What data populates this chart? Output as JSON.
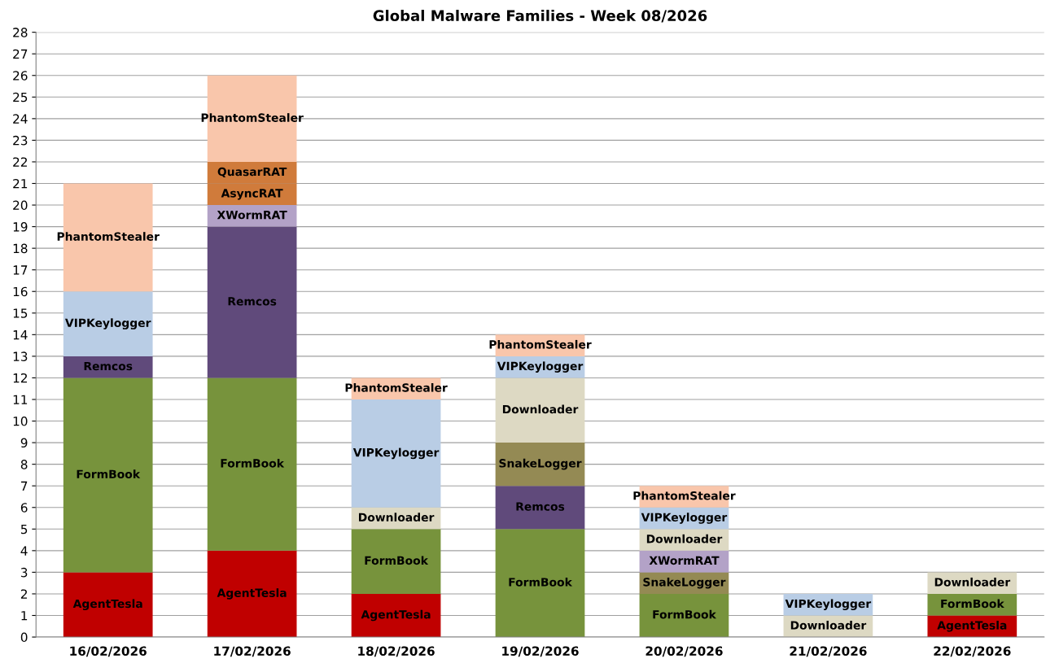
{
  "chart_data": {
    "type": "bar",
    "stacked": true,
    "title": "Global Malware Families - Week 08/2026",
    "categories": [
      "16/02/2026",
      "17/02/2026",
      "18/02/2026",
      "19/02/2026",
      "20/02/2026",
      "21/02/2026",
      "22/02/2026"
    ],
    "series": [
      {
        "name": "AgentTesla",
        "color": "#c00000",
        "values": [
          3,
          4,
          2,
          null,
          null,
          null,
          1
        ]
      },
      {
        "name": "FormBook",
        "color": "#77933c",
        "values": [
          9,
          8,
          3,
          5,
          2,
          null,
          1
        ]
      },
      {
        "name": "Remcos",
        "color": "#604a7b",
        "values": [
          1,
          7,
          null,
          2,
          null,
          null,
          null
        ]
      },
      {
        "name": "SnakeLogger",
        "color": "#948a54",
        "values": [
          null,
          null,
          null,
          2,
          1,
          null,
          null
        ]
      },
      {
        "name": "XWormRAT",
        "color": "#b3a2c7",
        "values": [
          null,
          1,
          null,
          null,
          1,
          null,
          null
        ]
      },
      {
        "name": "Downloader",
        "color": "#ddd9c3",
        "values": [
          null,
          null,
          1,
          3,
          1,
          1,
          1
        ]
      },
      {
        "name": "AsyncRAT",
        "color": "#d07b3b",
        "values": [
          null,
          1,
          null,
          null,
          null,
          null,
          null
        ]
      },
      {
        "name": "QuasarRAT",
        "color": "#d07b3b",
        "values": [
          null,
          1,
          null,
          null,
          null,
          null,
          null
        ]
      },
      {
        "name": "VIPKeylogger",
        "color": "#b9cde5",
        "values": [
          3,
          null,
          5,
          1,
          1,
          1,
          null
        ]
      },
      {
        "name": "PhantomStealer",
        "color": "#f9c6ab",
        "values": [
          5,
          4,
          1,
          1,
          1,
          null,
          null
        ]
      }
    ],
    "ylim": [
      0,
      28
    ],
    "yticks": [
      0,
      1,
      2,
      3,
      4,
      5,
      6,
      7,
      8,
      9,
      10,
      11,
      12,
      13,
      14,
      15,
      16,
      17,
      18,
      19,
      20,
      21,
      22,
      23,
      24,
      25,
      26,
      27,
      28
    ],
    "grid": "y"
  }
}
